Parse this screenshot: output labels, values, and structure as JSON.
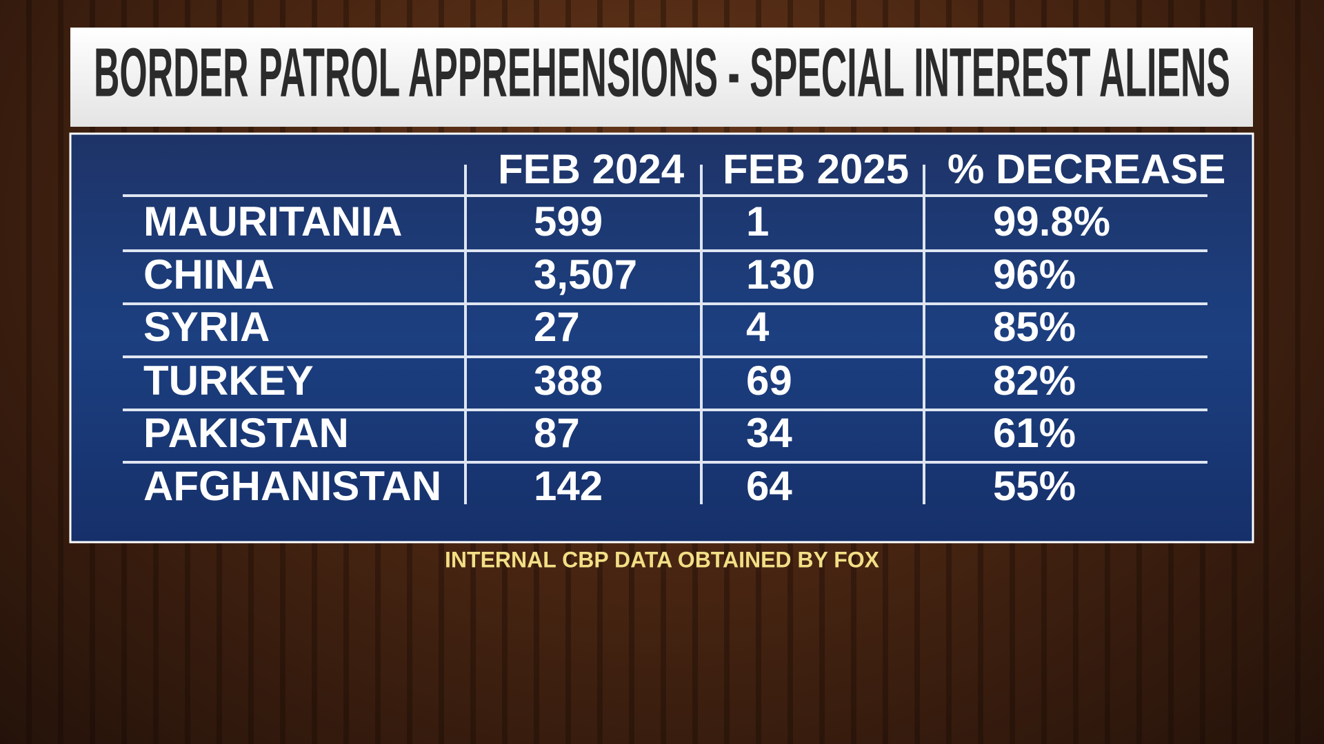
{
  "header": {
    "title": "BORDER PATROL APPREHENSIONS - SPECIAL INTEREST ALIENS"
  },
  "table": {
    "columns": [
      "FEB 2024",
      "FEB 2025",
      "% DECREASE"
    ],
    "rows": [
      [
        "MAURITANIA",
        "599",
        "1",
        "99.8%"
      ],
      [
        "CHINA",
        "3,507",
        "130",
        "96%"
      ],
      [
        "SYRIA",
        "27",
        "4",
        "85%"
      ],
      [
        "TURKEY",
        "388",
        "69",
        "82%"
      ],
      [
        "PAKISTAN",
        "87",
        "34",
        "61%"
      ],
      [
        "AFGHANISTAN",
        "142",
        "64",
        "55%"
      ]
    ]
  },
  "source": "INTERNAL CBP DATA OBTAINED BY FOX"
}
